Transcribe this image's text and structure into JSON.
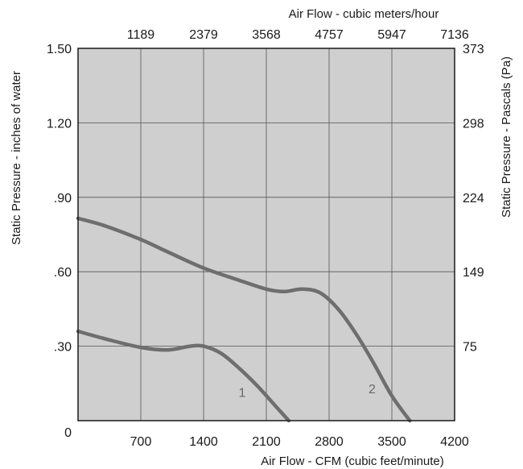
{
  "chart_data": {
    "type": "line",
    "x_axis": {
      "label": "Air Flow - CFM (cubic feet/minute)",
      "range": [
        0,
        4200
      ],
      "ticks": [
        700,
        1400,
        2100,
        2800,
        3500,
        4200
      ],
      "tick_labels": [
        "700",
        "1400",
        "2100",
        "2800",
        "3500",
        "4200"
      ]
    },
    "x2_axis": {
      "label": "Air Flow - cubic meters/hour",
      "ticks": [
        700,
        1400,
        2100,
        2800,
        3500,
        4200
      ],
      "tick_labels": [
        "1189",
        "2379",
        "3568",
        "4757",
        "5947",
        "7136"
      ]
    },
    "y_axis": {
      "label": "Static Pressure - inches of water",
      "range": [
        0,
        1.5
      ],
      "ticks": [
        0,
        0.3,
        0.6,
        0.9,
        1.2,
        1.5
      ],
      "tick_labels": [
        "0",
        ".30",
        ".60",
        ".90",
        "1.20",
        "1.50"
      ]
    },
    "y2_axis": {
      "label": "Static Pressure - Pascals (Pa)",
      "ticks": [
        0.3,
        0.6,
        0.9,
        1.2,
        1.5
      ],
      "tick_labels": [
        "75",
        "149",
        "224",
        "298",
        "373"
      ]
    },
    "grid": true,
    "colors": {
      "plot_bg": "#cfcfcf",
      "curve": "#6e6e6e",
      "grid": "#555555"
    },
    "series": [
      {
        "name": "1",
        "x": [
          0,
          300,
          700,
          1000,
          1250,
          1400,
          1600,
          1800,
          2000,
          2200,
          2350
        ],
        "y": [
          0.36,
          0.33,
          0.295,
          0.285,
          0.3,
          0.3,
          0.27,
          0.21,
          0.14,
          0.06,
          0.0
        ]
      },
      {
        "name": "2",
        "x": [
          0,
          300,
          700,
          1000,
          1400,
          1800,
          2100,
          2300,
          2500,
          2700,
          2900,
          3100,
          3300,
          3500,
          3700
        ],
        "y": [
          0.815,
          0.785,
          0.73,
          0.68,
          0.615,
          0.565,
          0.53,
          0.52,
          0.53,
          0.515,
          0.45,
          0.35,
          0.23,
          0.1,
          0.0
        ]
      }
    ]
  }
}
